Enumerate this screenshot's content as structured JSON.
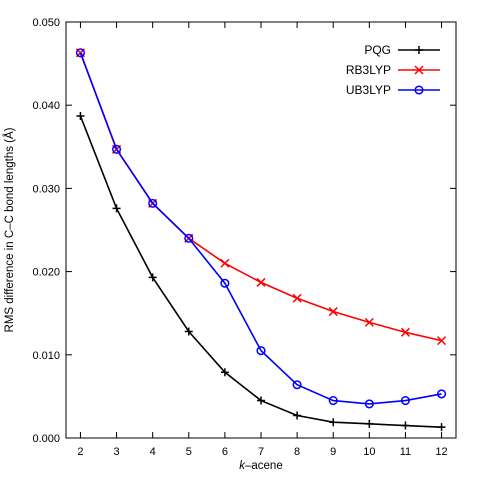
{
  "chart_data": {
    "type": "line",
    "xlabel_prefix": "k",
    "xlabel_suffix": "–acene",
    "ylabel": "RMS difference in C–C bond lengths (Å)",
    "xlim": [
      1.6,
      12.4
    ],
    "ylim": [
      0.0,
      0.05
    ],
    "x_ticks": [
      2,
      3,
      4,
      5,
      6,
      7,
      8,
      9,
      10,
      11,
      12
    ],
    "y_ticks": [
      0.0,
      0.01,
      0.02,
      0.03,
      0.04,
      0.05
    ],
    "y_tick_labels": [
      "0.000",
      "0.010",
      "0.020",
      "0.030",
      "0.040",
      "0.050"
    ],
    "grid": false,
    "legend_position": "top-right",
    "series": [
      {
        "name": "PQG",
        "color": "#000000",
        "marker": "plus",
        "x": [
          2,
          3,
          4,
          5,
          6,
          7,
          8,
          9,
          10,
          11,
          12
        ],
        "y": [
          0.0387,
          0.0276,
          0.0193,
          0.0128,
          0.0079,
          0.0045,
          0.0027,
          0.0019,
          0.0017,
          0.0015,
          0.0013
        ]
      },
      {
        "name": "RB3LYP",
        "color": "#ff0000",
        "marker": "cross",
        "x": [
          2,
          3,
          4,
          5,
          6,
          7,
          8,
          9,
          10,
          11,
          12
        ],
        "y": [
          0.0463,
          0.0347,
          0.0282,
          0.024,
          0.021,
          0.0187,
          0.0168,
          0.0152,
          0.0139,
          0.0127,
          0.0117
        ]
      },
      {
        "name": "UB3LYP",
        "color": "#0000ff",
        "marker": "circle",
        "x": [
          2,
          3,
          4,
          5,
          6,
          7,
          8,
          9,
          10,
          11,
          12
        ],
        "y": [
          0.0463,
          0.0347,
          0.0282,
          0.024,
          0.0186,
          0.0105,
          0.0064,
          0.0045,
          0.0041,
          0.0045,
          0.0053
        ]
      }
    ]
  }
}
